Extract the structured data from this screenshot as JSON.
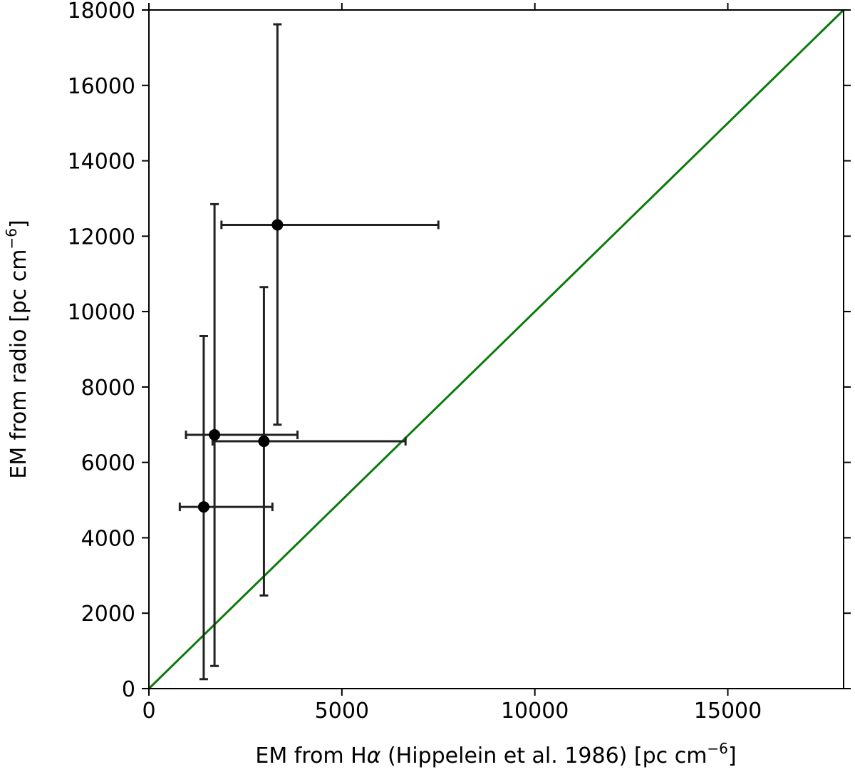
{
  "chart_data": {
    "type": "scatter",
    "title": "",
    "xlabel": {
      "prefix": "EM from H",
      "greek": "α",
      "suffix": " (Hippelein et al. 1986) [pc cm",
      "exponent": "−6",
      "close": "]"
    },
    "ylabel": {
      "prefix": "EM from radio [pc cm",
      "exponent": "−6",
      "close": "]"
    },
    "xlim": [
      0,
      18000
    ],
    "ylim": [
      0,
      18000
    ],
    "xticks": [
      0,
      5000,
      10000,
      15000
    ],
    "xtick_labels": [
      "0",
      "5000",
      "10000",
      "15000"
    ],
    "yticks": [
      0,
      2000,
      4000,
      6000,
      8000,
      10000,
      12000,
      14000,
      16000,
      18000
    ],
    "ytick_labels": [
      "0",
      "2000",
      "4000",
      "6000",
      "8000",
      "10000",
      "12000",
      "14000",
      "16000",
      "18000"
    ],
    "grid": false,
    "points": [
      {
        "x": 1420,
        "y": 4820,
        "xerr": [
          800,
          3200
        ],
        "yerr": [
          250,
          9350
        ]
      },
      {
        "x": 1700,
        "y": 6730,
        "xerr": [
          960,
          3850
        ],
        "yerr": [
          600,
          12850
        ]
      },
      {
        "x": 2980,
        "y": 6560,
        "xerr": [
          1650,
          6650
        ],
        "yerr": [
          2470,
          10650
        ]
      },
      {
        "x": 3330,
        "y": 12300,
        "xerr": [
          1880,
          7500
        ],
        "yerr": [
          7000,
          17620
        ]
      }
    ],
    "reference_line": {
      "from": [
        0,
        0
      ],
      "to": [
        18000,
        18000
      ],
      "color": "#0a7a0a"
    },
    "marker_color": "#000000",
    "errorbar_color": "#222222"
  }
}
